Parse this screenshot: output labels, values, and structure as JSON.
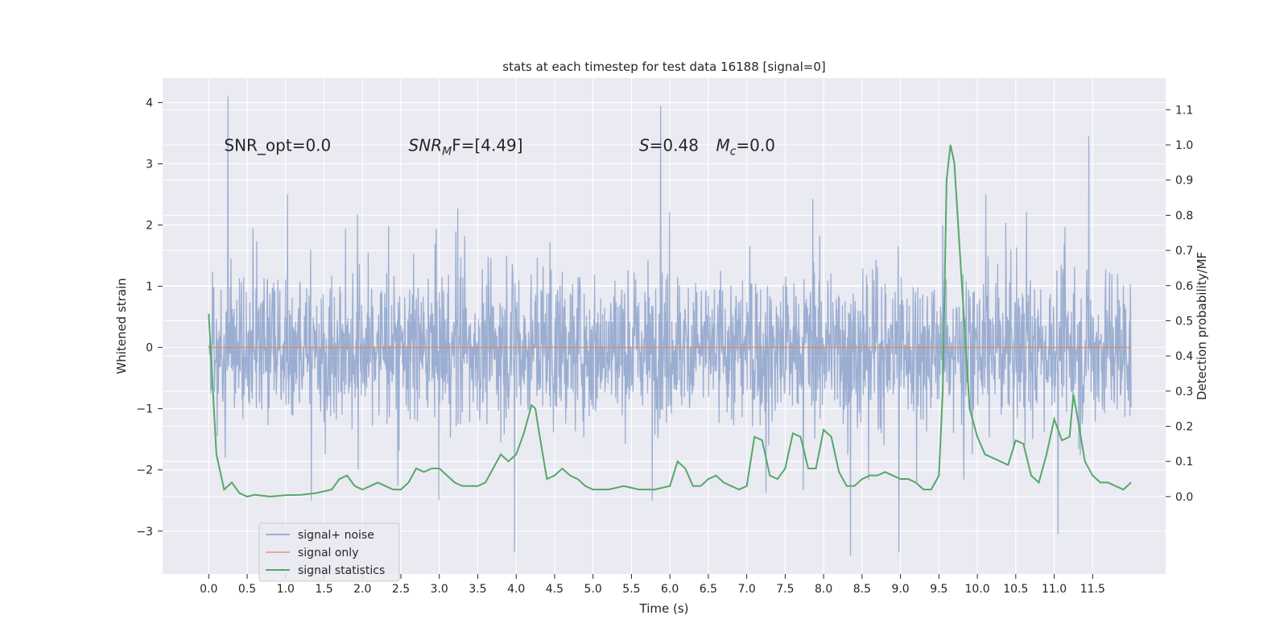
{
  "chart_data": {
    "type": "line",
    "title": "stats at each timestep for test data 16188 [signal=0]",
    "xlabel": "Time (s)",
    "ylabel_left": "Whitened strain",
    "ylabel_right": "Detection probability/MF",
    "xlim": [
      -0.6,
      12.45
    ],
    "ylim_left": [
      -3.7,
      4.4
    ],
    "ylim_right": [
      -0.22,
      1.19
    ],
    "x_ticks": [
      "0.0",
      "0.5",
      "1.0",
      "1.5",
      "2.0",
      "2.5",
      "3.0",
      "3.5",
      "4.0",
      "4.5",
      "5.0",
      "5.5",
      "6.0",
      "6.5",
      "7.0",
      "7.5",
      "8.0",
      "8.5",
      "9.0",
      "9.5",
      "10.0",
      "10.5",
      "11.0",
      "11.5"
    ],
    "y_ticks_left": [
      "−3",
      "−2",
      "−1",
      "0",
      "1",
      "2",
      "3",
      "4"
    ],
    "y_ticks_right": [
      "0.0",
      "0.1",
      "0.2",
      "0.3",
      "0.4",
      "0.5",
      "0.6",
      "0.7",
      "0.8",
      "0.9",
      "1.0",
      "1.1"
    ],
    "grid": true,
    "legend_placement": "lower-left",
    "annotations": [
      {
        "id": "snr_opt",
        "text": "SNR_opt=0.0",
        "x": 0.2,
        "y": 3.3
      },
      {
        "id": "snr_mf",
        "base": "SNR",
        "sub": "M",
        "rest": "F=[4.49]",
        "x": 2.6,
        "y": 3.3
      },
      {
        "id": "s_stat",
        "base": "S",
        "rest": "=0.48",
        "x": 5.6,
        "y": 3.3
      },
      {
        "id": "mc",
        "base": "M",
        "sub": "c",
        "rest": "=0.0",
        "x": 6.6,
        "y": 3.3
      }
    ],
    "series": [
      {
        "name": "signal+ noise",
        "axis": "left",
        "color": "#4c72b0",
        "style": "noise",
        "x_range": [
          0.0,
          12.0
        ],
        "envelope": [
          -2.5,
          2.5
        ],
        "peaks": [
          [
            0.25,
            4.1
          ],
          [
            5.88,
            3.95
          ],
          [
            9.55,
            2.0
          ],
          [
            11.45,
            3.45
          ],
          [
            3.98,
            -3.35
          ],
          [
            8.98,
            -3.35
          ],
          [
            8.35,
            -3.4
          ],
          [
            11.05,
            -3.05
          ]
        ]
      },
      {
        "name": "signal only",
        "axis": "left",
        "color": "#dd8452",
        "x": [
          0.0,
          12.0
        ],
        "y": [
          0.0,
          0.0
        ]
      },
      {
        "name": "signal statistics",
        "axis": "right",
        "color": "#55a868",
        "x": [
          0.0,
          0.1,
          0.2,
          0.3,
          0.4,
          0.5,
          0.6,
          0.8,
          1.0,
          1.2,
          1.4,
          1.6,
          1.7,
          1.8,
          1.9,
          2.0,
          2.1,
          2.2,
          2.4,
          2.5,
          2.6,
          2.7,
          2.8,
          2.9,
          3.0,
          3.1,
          3.2,
          3.3,
          3.4,
          3.5,
          3.6,
          3.7,
          3.8,
          3.9,
          4.0,
          4.1,
          4.2,
          4.25,
          4.3,
          4.4,
          4.5,
          4.6,
          4.7,
          4.8,
          4.9,
          5.0,
          5.2,
          5.4,
          5.6,
          5.8,
          6.0,
          6.1,
          6.2,
          6.3,
          6.4,
          6.5,
          6.6,
          6.7,
          6.8,
          6.9,
          7.0,
          7.1,
          7.2,
          7.3,
          7.4,
          7.5,
          7.6,
          7.7,
          7.8,
          7.9,
          8.0,
          8.1,
          8.2,
          8.3,
          8.4,
          8.5,
          8.6,
          8.7,
          8.8,
          8.9,
          9.0,
          9.1,
          9.2,
          9.3,
          9.4,
          9.5,
          9.55,
          9.6,
          9.65,
          9.7,
          9.8,
          9.9,
          10.0,
          10.1,
          10.2,
          10.3,
          10.4,
          10.5,
          10.6,
          10.7,
          10.8,
          10.9,
          11.0,
          11.1,
          11.2,
          11.25,
          11.3,
          11.4,
          11.5,
          11.6,
          11.7,
          11.8,
          11.9,
          12.0
        ],
        "y": [
          0.52,
          0.12,
          0.02,
          0.04,
          0.01,
          0.0,
          0.005,
          0.0,
          0.004,
          0.005,
          0.01,
          0.02,
          0.05,
          0.06,
          0.03,
          0.02,
          0.03,
          0.04,
          0.02,
          0.02,
          0.04,
          0.08,
          0.07,
          0.08,
          0.08,
          0.06,
          0.04,
          0.03,
          0.03,
          0.03,
          0.04,
          0.08,
          0.12,
          0.1,
          0.12,
          0.18,
          0.26,
          0.25,
          0.18,
          0.05,
          0.06,
          0.08,
          0.06,
          0.05,
          0.03,
          0.02,
          0.02,
          0.03,
          0.02,
          0.02,
          0.03,
          0.1,
          0.08,
          0.03,
          0.03,
          0.05,
          0.06,
          0.04,
          0.03,
          0.02,
          0.03,
          0.17,
          0.16,
          0.06,
          0.05,
          0.08,
          0.18,
          0.17,
          0.08,
          0.08,
          0.19,
          0.17,
          0.07,
          0.03,
          0.03,
          0.05,
          0.06,
          0.06,
          0.07,
          0.06,
          0.05,
          0.05,
          0.04,
          0.02,
          0.02,
          0.06,
          0.3,
          0.9,
          1.0,
          0.95,
          0.6,
          0.25,
          0.17,
          0.12,
          0.11,
          0.1,
          0.09,
          0.16,
          0.15,
          0.06,
          0.04,
          0.12,
          0.22,
          0.16,
          0.17,
          0.29,
          0.23,
          0.1,
          0.06,
          0.04,
          0.04,
          0.03,
          0.02,
          0.04
        ]
      }
    ]
  }
}
